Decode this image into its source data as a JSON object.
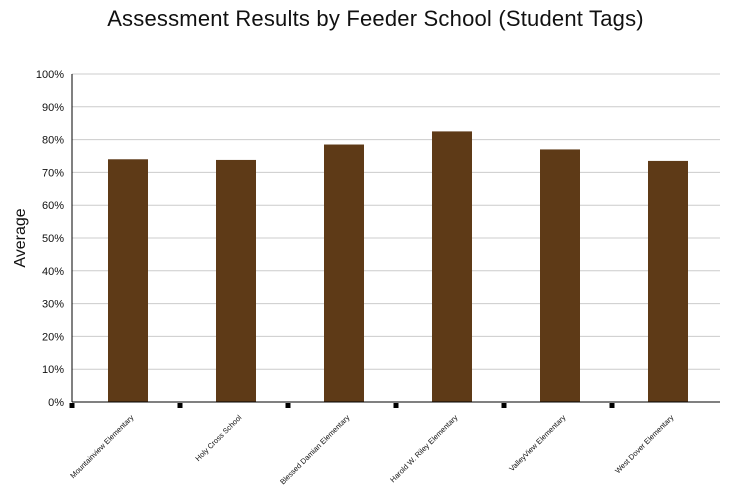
{
  "chart_data": {
    "type": "bar",
    "title": "Assessment Results by Feeder School (Student Tags)",
    "xlabel": "",
    "ylabel": "Average",
    "categories": [
      "Mountainview Elementary",
      "Holy Cross School",
      "Blessed Damian Elementary",
      "Harold W. Riley Elementary",
      "ValleyView Elementary",
      "West Dover Elementary"
    ],
    "values": [
      74,
      73.8,
      78.5,
      82.5,
      77,
      73.5
    ],
    "ylim": [
      0,
      100
    ],
    "yticks": [
      "0%",
      "10%",
      "20%",
      "30%",
      "40%",
      "50%",
      "60%",
      "70%",
      "80%",
      "90%",
      "100%"
    ],
    "grid": true,
    "legend": "none",
    "colors": {
      "bar": "#5e3a17",
      "grid": "#cccccc",
      "axis": "#000000"
    }
  }
}
